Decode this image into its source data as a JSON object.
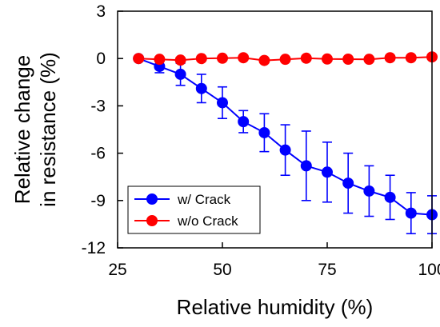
{
  "chart_data": {
    "type": "line",
    "xlabel": "Relative humidity (%)",
    "ylabel_lines": [
      "Relative change",
      "in resistance (%)"
    ],
    "xlim": [
      25,
      100
    ],
    "ylim": [
      -12,
      3
    ],
    "xticks": [
      25,
      50,
      75,
      100
    ],
    "yticks": [
      3,
      0,
      -3,
      -6,
      -9,
      -12
    ],
    "x": [
      30,
      35,
      40,
      45,
      50,
      55,
      60,
      65,
      70,
      75,
      80,
      85,
      90,
      95,
      100
    ],
    "series": [
      {
        "name": "w/ Crack",
        "color": "#0000ff",
        "marker_color": "#0000ff",
        "values": [
          0.0,
          -0.5,
          -1.0,
          -1.9,
          -2.8,
          -4.0,
          -4.7,
          -5.8,
          -6.8,
          -7.2,
          -7.9,
          -8.4,
          -8.8,
          -9.8,
          -9.9
        ],
        "error": [
          0.0,
          0.4,
          0.7,
          0.9,
          1.0,
          0.7,
          1.2,
          1.6,
          2.2,
          1.9,
          1.9,
          1.6,
          1.4,
          1.3,
          1.2
        ]
      },
      {
        "name": "w/o Crack",
        "color": "#ff0000",
        "marker_color": "#ff0000",
        "values": [
          0.0,
          -0.05,
          -0.1,
          0.0,
          0.02,
          0.05,
          -0.12,
          -0.05,
          0.02,
          -0.03,
          -0.04,
          -0.05,
          0.05,
          0.05,
          0.1
        ],
        "error": [
          0,
          0,
          0,
          0,
          0,
          0,
          0,
          0,
          0,
          0,
          0,
          0,
          0,
          0,
          0
        ]
      }
    ],
    "legend_position": "bottom-left",
    "grid": false
  }
}
